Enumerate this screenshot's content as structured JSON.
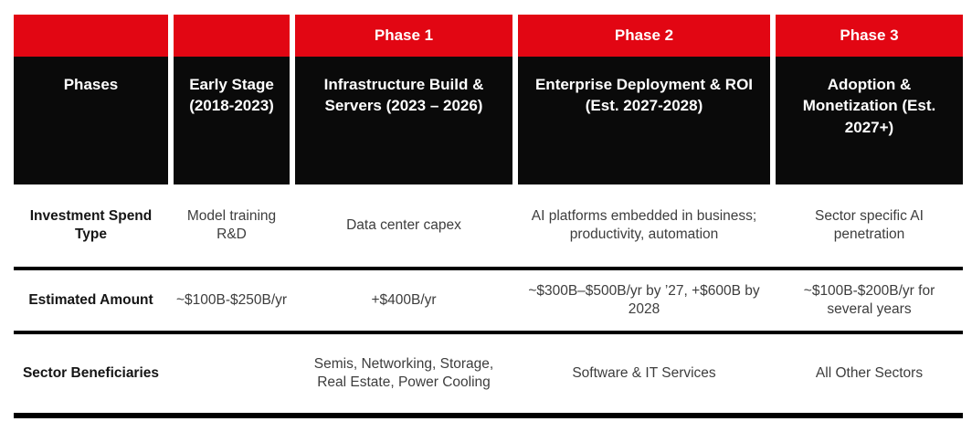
{
  "colors": {
    "accent_red": "#E20613",
    "header_black": "#0a0a0a",
    "rule_black": "#000000",
    "body_text": "#3d3d3d"
  },
  "chart_data": {
    "type": "table",
    "phase_band": [
      "",
      "",
      "Phase 1",
      "Phase 2",
      "Phase 3"
    ],
    "column_headers": [
      "Phases",
      "Early Stage (2018-2023)",
      "Infrastructure Build & Servers (2023 – 2026)",
      "Enterprise Deployment & ROI (Est. 2027-2028)",
      "Adoption & Monetization (Est. 2027+)"
    ],
    "rows": [
      {
        "label": "Investment Spend Type",
        "cells": [
          "Model training R&D",
          "Data center capex",
          "AI platforms embedded in business; productivity, automation",
          "Sector specific AI penetration"
        ]
      },
      {
        "label": "Estimated Amount",
        "cells": [
          "~$100B-$250B/yr",
          "+$400B/yr",
          "~$300B–$500B/yr by ’27, +$600B by 2028",
          "~$100B-$200B/yr for several years"
        ]
      },
      {
        "label": "Sector Beneficiaries",
        "cells": [
          "",
          "Semis, Networking, Storage, Real Estate, Power Cooling",
          "Software & IT Services",
          "All Other Sectors"
        ]
      }
    ]
  }
}
